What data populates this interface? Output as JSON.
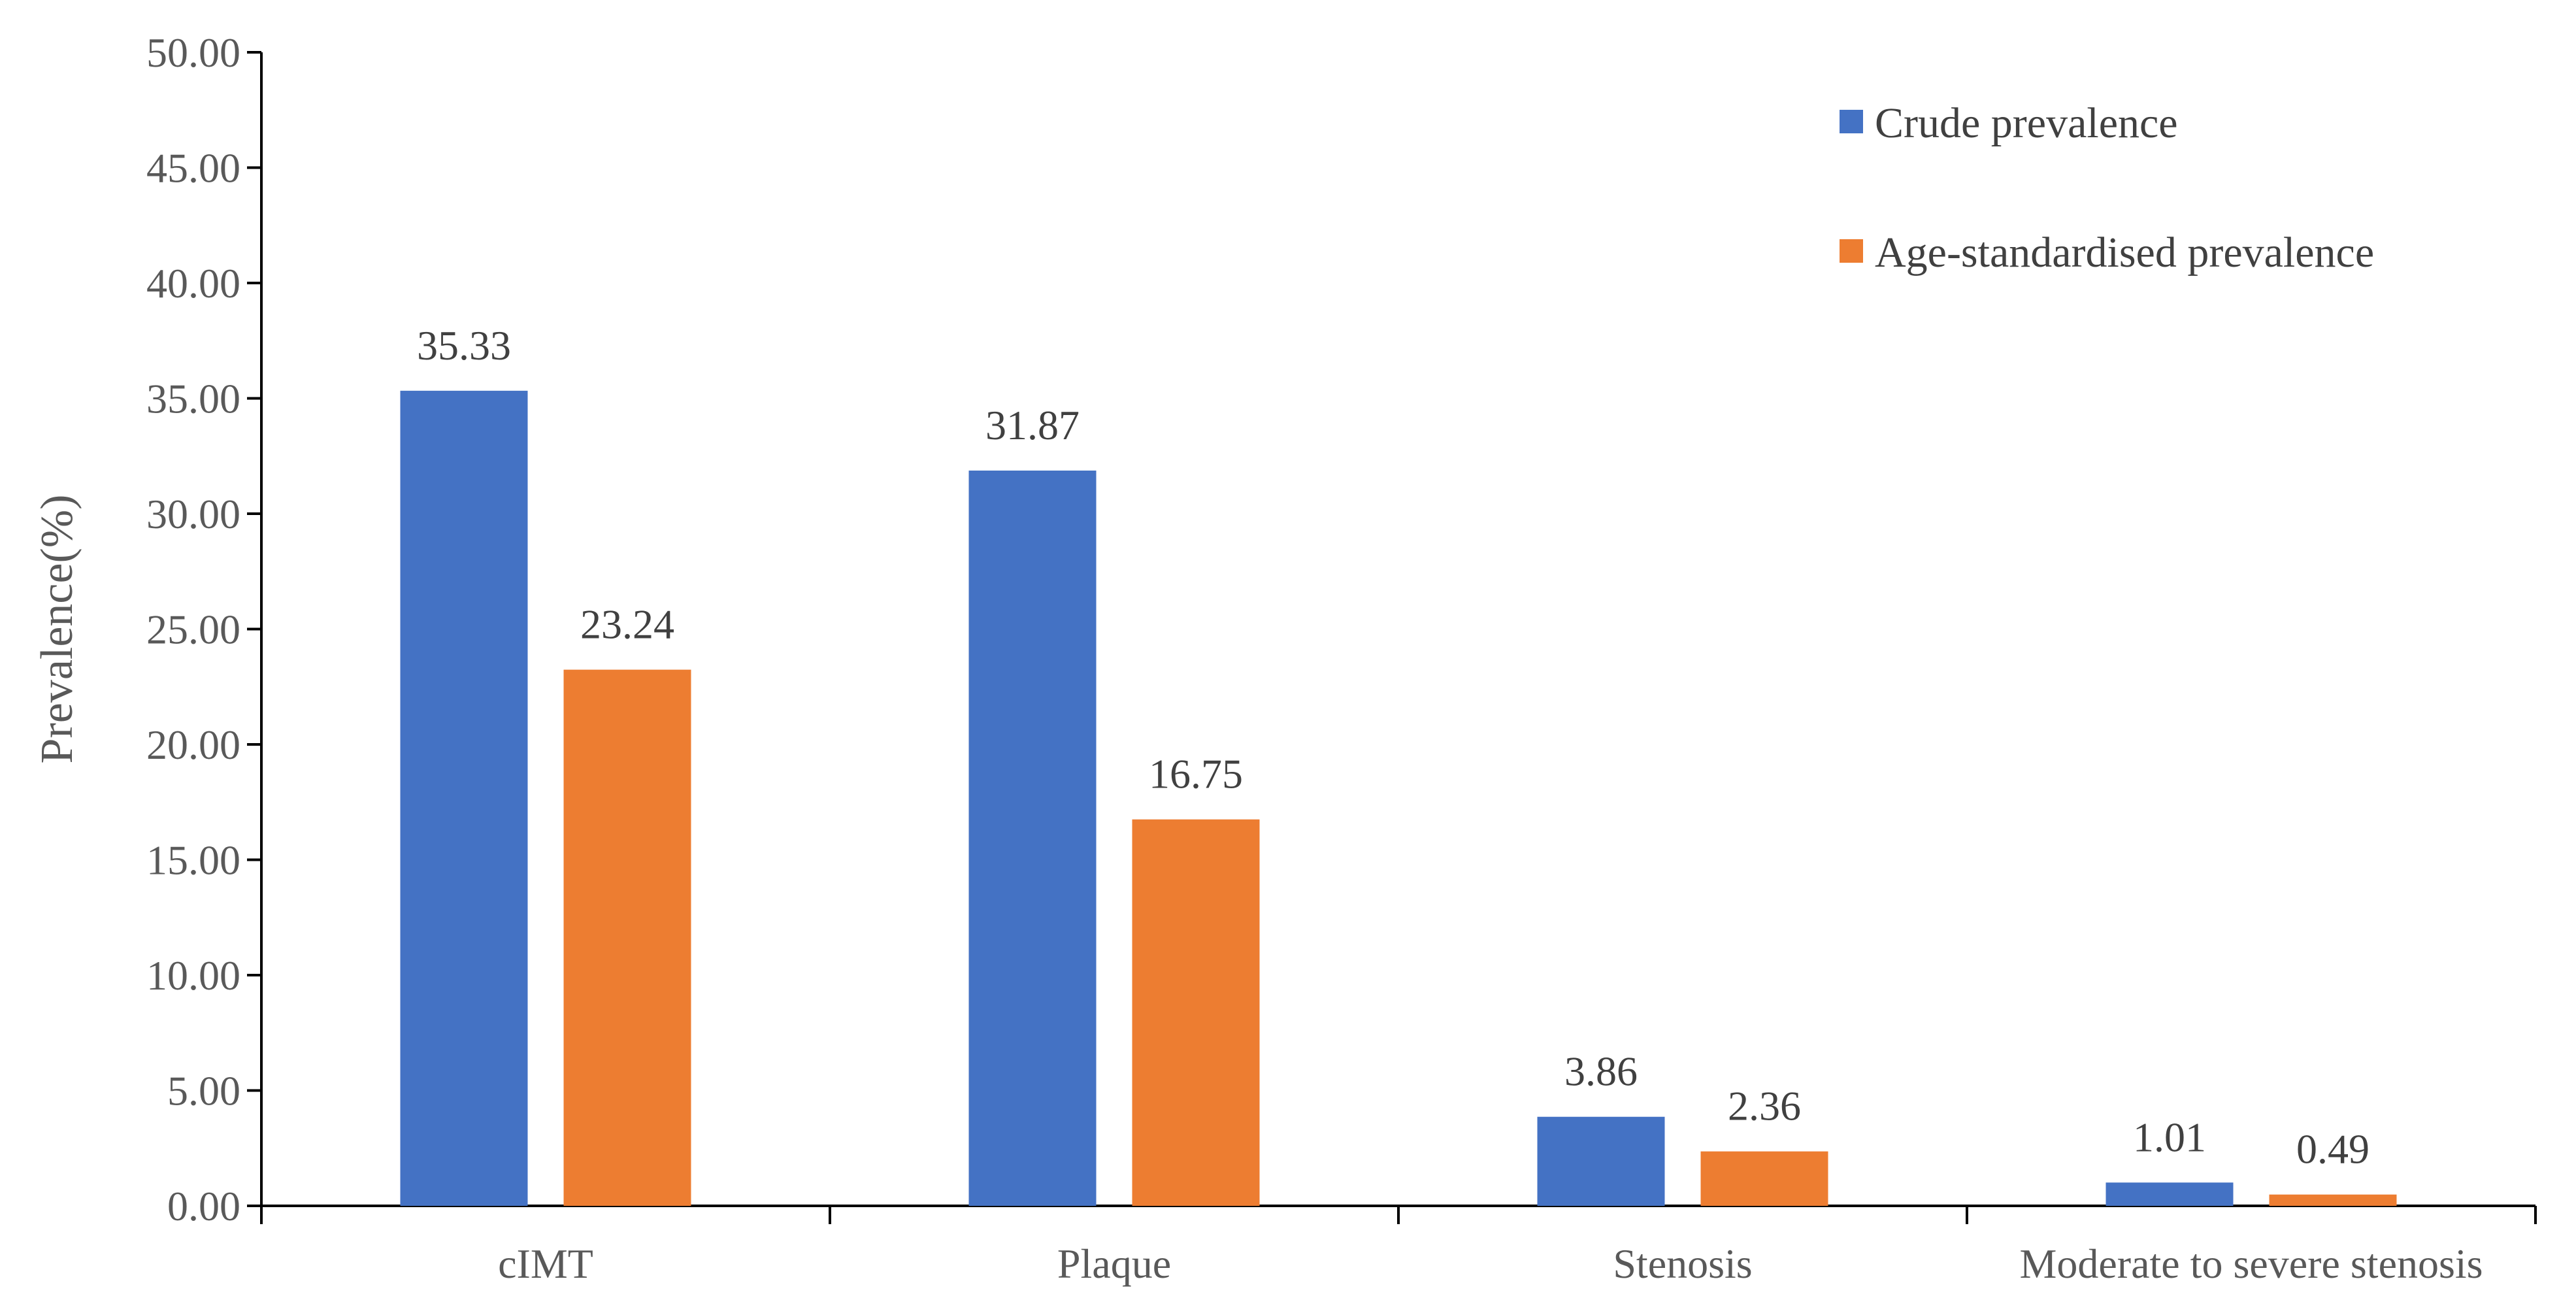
{
  "chart_data": {
    "type": "bar",
    "categories": [
      "cIMT",
      "Plaque",
      "Stenosis",
      "Moderate to severe stenosis"
    ],
    "series": [
      {
        "name": "Crude prevalence",
        "color": "#4472C4",
        "values": [
          35.33,
          31.87,
          3.86,
          1.01
        ],
        "labels": [
          "35.33",
          "31.87",
          "3.86",
          "1.01"
        ]
      },
      {
        "name": "Age-standardised prevalence",
        "color": "#ED7D31",
        "values": [
          23.24,
          16.75,
          2.36,
          0.49
        ],
        "labels": [
          "23.24",
          "16.75",
          "2.36",
          "0.49"
        ]
      }
    ],
    "ylabel": "Prevalence(%)",
    "ylim": [
      0,
      50
    ],
    "yticks": [
      "0.00",
      "5.00",
      "10.00",
      "15.00",
      "20.00",
      "25.00",
      "30.00",
      "35.00",
      "40.00",
      "45.00",
      "50.00"
    ],
    "grid": false,
    "legend_position": "top-right"
  }
}
